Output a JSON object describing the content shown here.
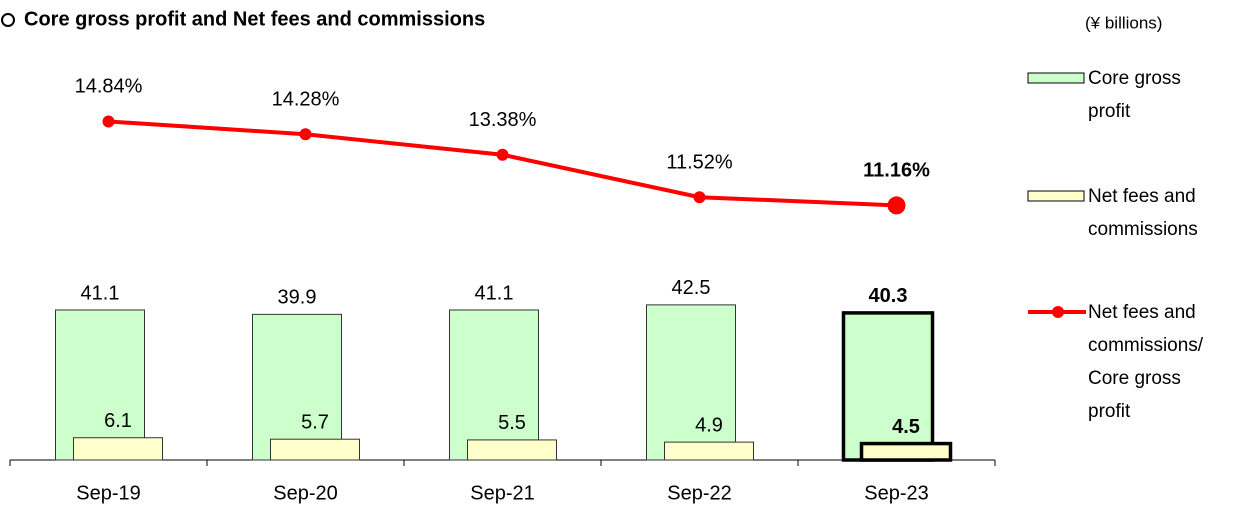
{
  "chart_data": {
    "type": "bar",
    "title": "Core gross profit and Net fees and commissions",
    "unit_label": "(¥ billions)",
    "categories": [
      "Sep-19",
      "Sep-20",
      "Sep-21",
      "Sep-22",
      "Sep-23"
    ],
    "ylim": [
      0,
      120
    ],
    "y2lim": [
      0,
      19.2
    ],
    "highlight_index": 4,
    "series": [
      {
        "name": "Core gross profit",
        "color": "#ccffcc",
        "type": "bar",
        "values": [
          41.1,
          39.9,
          41.1,
          42.5,
          40.3
        ]
      },
      {
        "name": "Net fees and commissions",
        "color": "#ffffcc",
        "type": "bar",
        "values": [
          6.1,
          5.7,
          5.5,
          4.9,
          4.5
        ]
      },
      {
        "name": "Net fees and commissions/ Core gross profit",
        "color": "#ff0000",
        "type": "line",
        "axis": "y2",
        "values": [
          14.84,
          14.28,
          13.38,
          11.52,
          11.16
        ],
        "value_labels": [
          "14.84%",
          "14.28%",
          "13.38%",
          "11.52%",
          "11.16%"
        ]
      }
    ]
  }
}
